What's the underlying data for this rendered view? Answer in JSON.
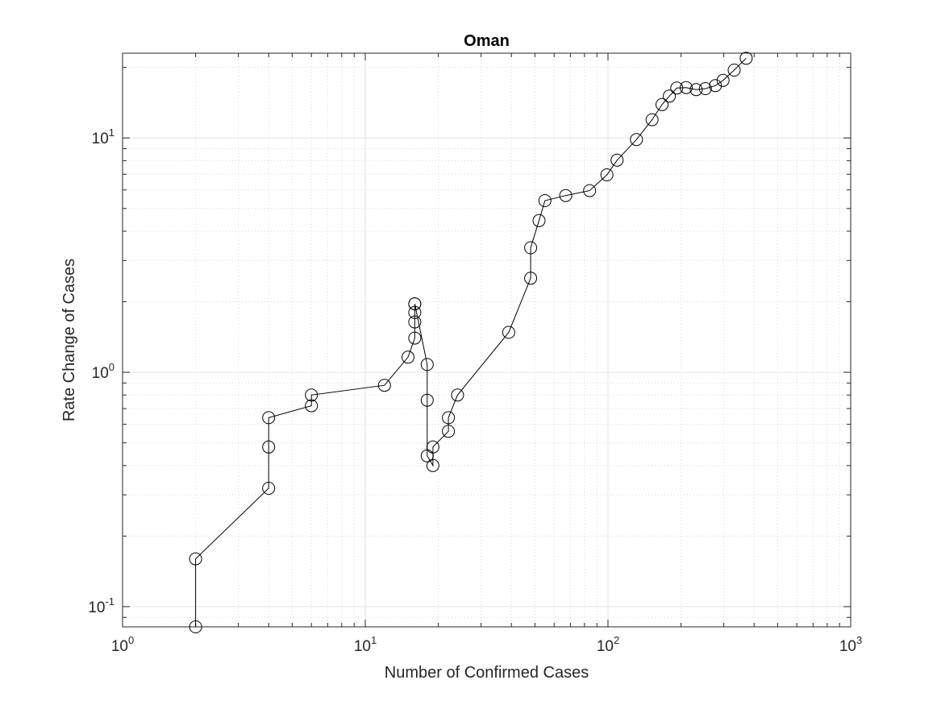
{
  "chart_data": {
    "type": "line",
    "title": "Oman",
    "xlabel": "Number of Confirmed Cases",
    "ylabel": "Rate Change of Cases",
    "xscale": "log",
    "yscale": "log",
    "xlim": [
      1,
      1000
    ],
    "ylim": [
      0.082,
      23
    ],
    "grid": true,
    "minor_grid": true,
    "marker": "circle",
    "line_color": "#000000",
    "x_ticks": [
      {
        "base": "10",
        "exp": "0"
      },
      {
        "base": "10",
        "exp": "1"
      },
      {
        "base": "10",
        "exp": "2"
      },
      {
        "base": "10",
        "exp": "3"
      }
    ],
    "y_ticks": [
      {
        "base": "10",
        "exp": "-1"
      },
      {
        "base": "10",
        "exp": "0"
      },
      {
        "base": "10",
        "exp": "1"
      }
    ],
    "x_tick_values": [
      1,
      10,
      100,
      1000
    ],
    "y_tick_values": [
      0.1,
      1,
      10
    ],
    "series": [
      {
        "x": [
          2,
          2,
          4,
          4,
          4,
          6,
          6,
          12,
          15,
          16,
          16,
          16,
          16,
          16,
          18,
          18,
          18,
          19,
          19,
          22,
          22,
          24,
          39,
          48,
          48,
          52,
          55,
          67,
          84,
          99,
          109,
          131,
          152,
          167,
          179,
          192,
          210,
          231,
          252,
          277,
          298,
          331,
          371
        ],
        "y": [
          0.082,
          0.16,
          0.32,
          0.48,
          0.64,
          0.72,
          0.8,
          0.88,
          1.16,
          1.4,
          1.64,
          1.8,
          1.96,
          1.96,
          1.08,
          0.76,
          0.44,
          0.4,
          0.48,
          0.56,
          0.64,
          0.8,
          1.48,
          2.52,
          3.4,
          4.44,
          5.4,
          5.68,
          5.96,
          6.96,
          8.04,
          9.84,
          11.96,
          13.88,
          15.08,
          16.32,
          16.4,
          16.08,
          16.24,
          16.72,
          17.6,
          19.48,
          21.88
        ]
      }
    ]
  }
}
